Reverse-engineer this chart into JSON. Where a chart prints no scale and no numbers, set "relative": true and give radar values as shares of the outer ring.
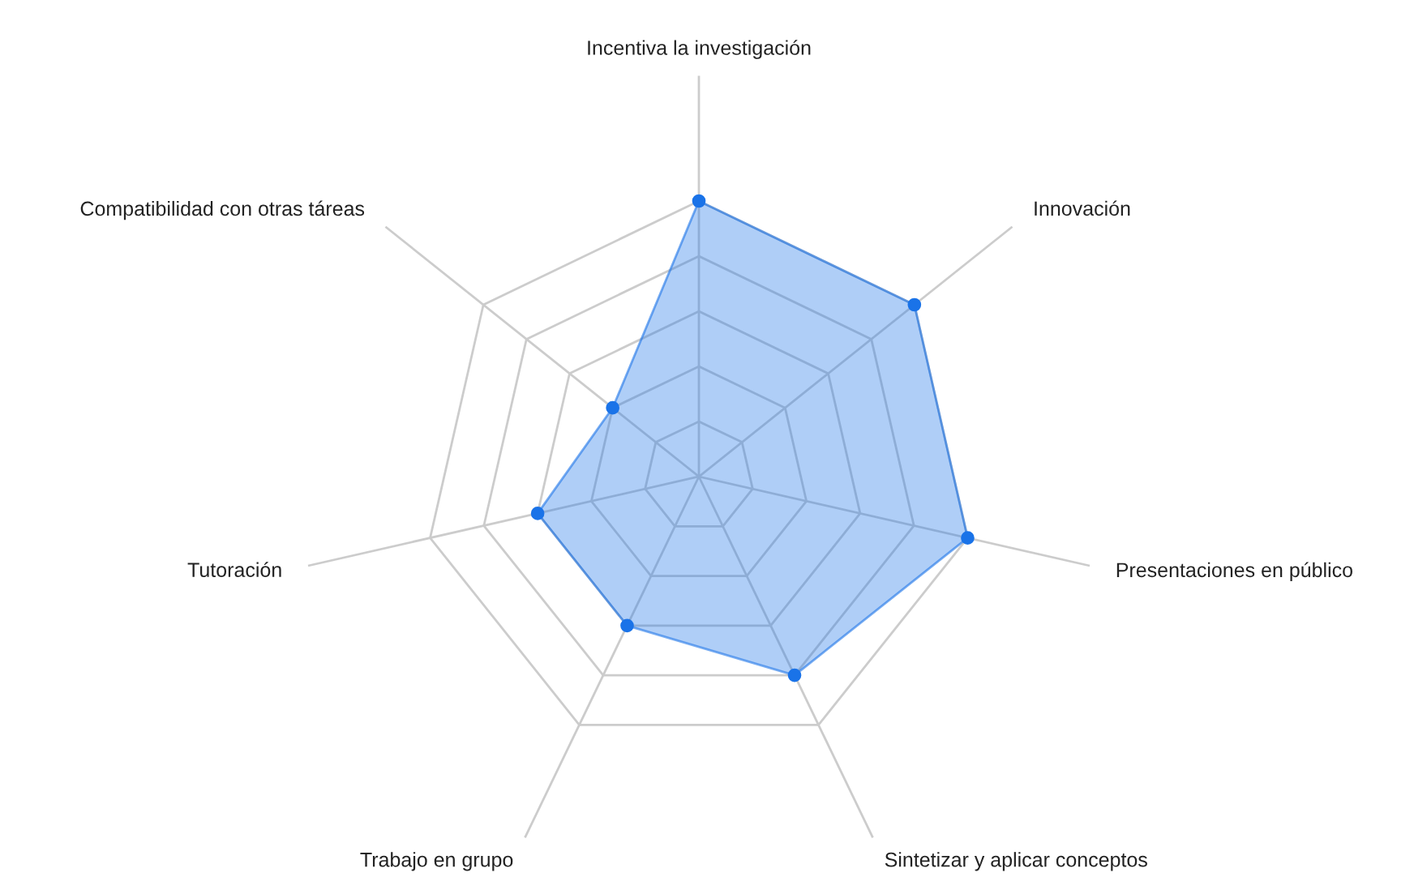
{
  "chart_data": {
    "type": "radar",
    "relative": true,
    "grid": true,
    "marker": "circle",
    "categories": [
      "Incentiva la investigación",
      "Innovación",
      "Presentaciones en público",
      "Sintetizar y aplicar conceptos",
      "Trabajo en grupo",
      "Tutoración",
      "Compatibilidad con otras táreas"
    ],
    "series": [
      {
        "color": "#1a73e8",
        "values": [
          1.0,
          1.0,
          1.0,
          0.8,
          0.6,
          0.6,
          0.4
        ]
      }
    ]
  }
}
